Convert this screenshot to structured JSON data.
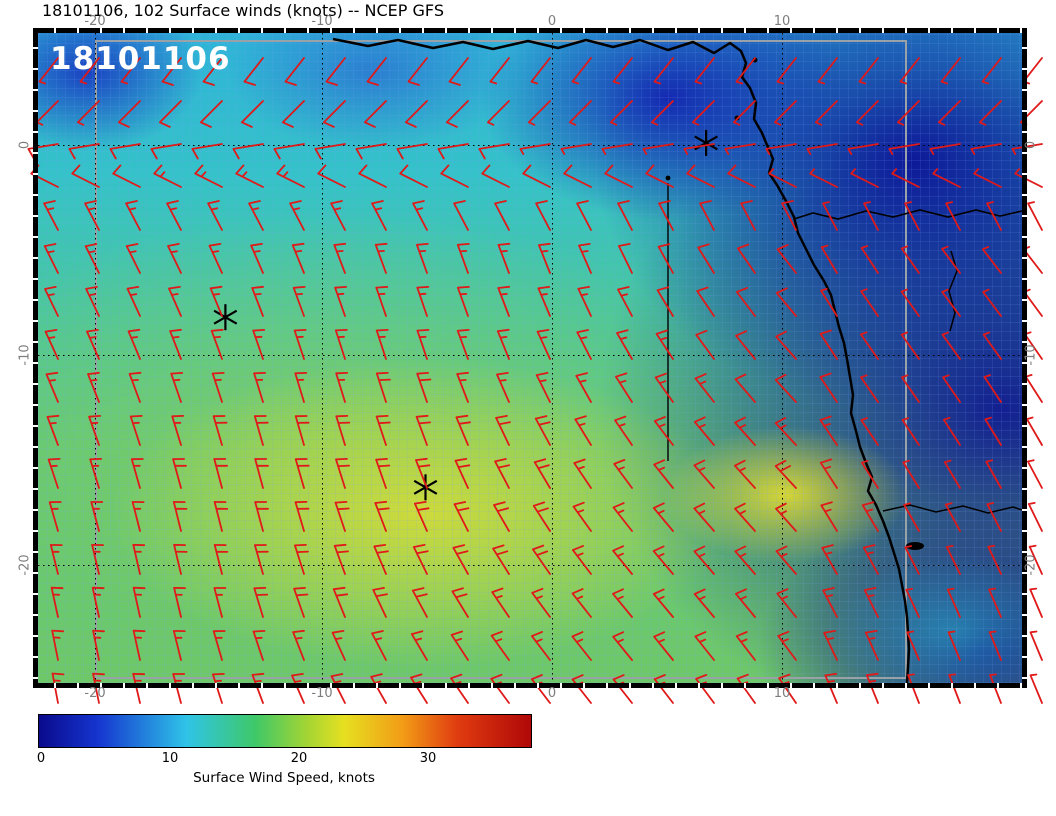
{
  "header": {
    "title": "18101106, 102 Surface winds (knots) -- NCEP GFS"
  },
  "map": {
    "overlay_label": "18101106",
    "axes": {
      "top": [
        "-20",
        "-10",
        "0",
        "10"
      ],
      "bottom": [
        "-20",
        "-10",
        "0",
        "10"
      ],
      "left": [
        "0",
        "-10",
        "-20"
      ],
      "right": [
        "0",
        "-10",
        "-20"
      ]
    }
  },
  "colorbar": {
    "label": "Surface Wind Speed, knots",
    "ticks": [
      "0",
      "10",
      "20",
      "30"
    ]
  },
  "chart_data": {
    "type": "heatmap",
    "title": "18101106, 102 Surface winds (knots) -- NCEP GFS",
    "model": "NCEP GFS",
    "valid_datetime": "18101106",
    "forecast_hour": 102,
    "field": "Surface Wind Speed",
    "units": "knots",
    "overlay": "wind barbs (red)",
    "lon_ticks": [
      -20,
      -10,
      0,
      10
    ],
    "lat_ticks": [
      0,
      -10,
      -20
    ],
    "lon_range": [
      -22.4,
      20.4
    ],
    "lat_range": [
      -25.9,
      5.3
    ],
    "grid": "1-degree dotted graticule every 10 degrees, gray model-domain outline",
    "colorbar": {
      "label": "Surface Wind Speed, knots",
      "ticks": [
        0,
        10,
        20,
        30
      ],
      "range": [
        0,
        38
      ],
      "gradient": [
        {
          "color": "#0a0a8c",
          "pct": 0
        },
        {
          "color": "#1535cf",
          "pct": 12
        },
        {
          "color": "#2fc4e8",
          "pct": 30
        },
        {
          "color": "#3fc868",
          "pct": 44
        },
        {
          "color": "#9fd435",
          "pct": 54
        },
        {
          "color": "#e6e020",
          "pct": 62
        },
        {
          "color": "#f29b16",
          "pct": 74
        },
        {
          "color": "#e03c10",
          "pct": 85
        },
        {
          "color": "#b00808",
          "pct": 100
        }
      ]
    },
    "wind_barbs": {
      "color": "#e01919",
      "grid_spacing_deg": 1.75,
      "speed_range_knots": [
        2,
        23
      ],
      "regimes": [
        {
          "region": "south of equator (ocean)",
          "direction": "SE trade winds, 10-22 kt, max ~22 kt near 6W 16S and near Namibian coast"
        },
        {
          "region": "north of equator / Gulf of Guinea",
          "direction": "weak SW monsoon flow, 3-10 kt"
        },
        {
          "region": "over land (Africa interior)",
          "direction": "light winds ~5 kt"
        }
      ]
    },
    "source_markers_lonlat": [
      [
        -14.2,
        -8.2
      ],
      [
        -5.5,
        -16.3
      ],
      [
        6.7,
        0.1
      ]
    ],
    "speed_maxima": [
      {
        "lon": -6,
        "lat": -16,
        "knots": 22
      },
      {
        "lon": 10.5,
        "lat": -15.5,
        "knots": 22
      }
    ],
    "speed_minima": [
      {
        "region": "Gulf of Guinea and inland Africa",
        "knots": "0-8"
      }
    ]
  }
}
